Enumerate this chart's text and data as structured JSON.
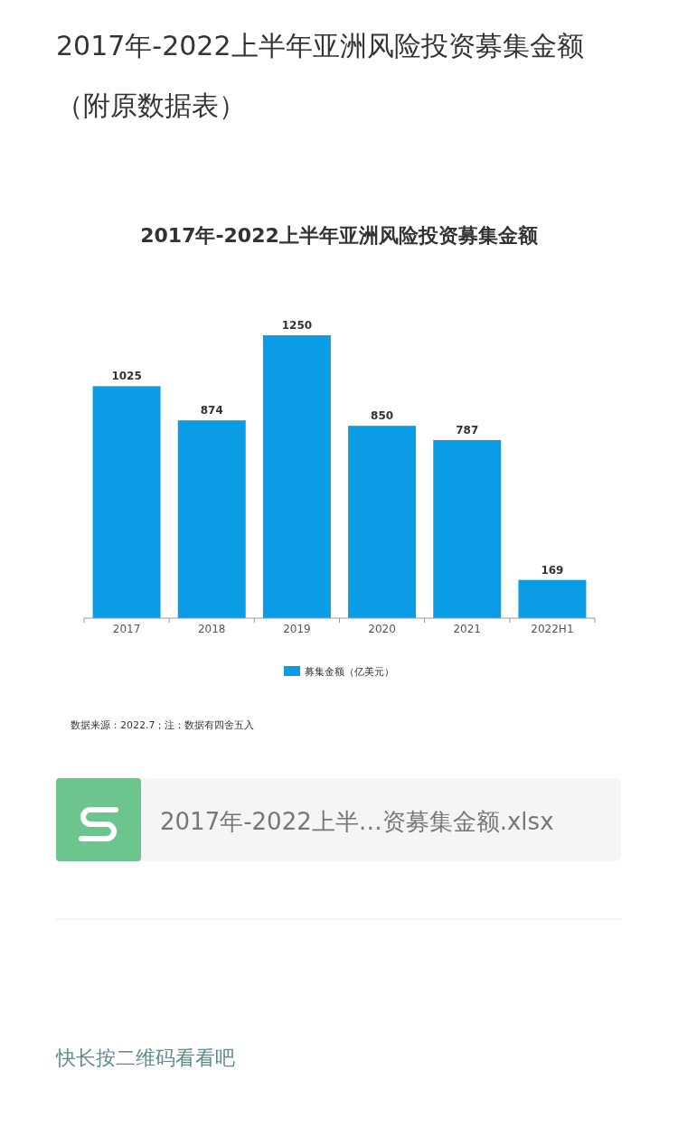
{
  "chart_data": {
    "type": "bar",
    "title": "2017年-2022上半年亚洲风险投资募集金额",
    "categories": [
      "2017",
      "2018",
      "2019",
      "2020",
      "2021",
      "2022H1"
    ],
    "series": [
      {
        "name": "募集金额（亿美元）",
        "color": "#0a9de6",
        "values": [
          1025,
          874,
          1250,
          850,
          787,
          169
        ]
      }
    ],
    "data_labels": true,
    "legend": "bottom",
    "annotations": [
      "2017年-2022上半年亚洲风险投资募集金额（附原数据表）",
      "数据来源：2022.7；注：数据有四舍五入",
      "2017年-2022上半…资募集金额.xlsx",
      "快长按二维码看看吧"
    ]
  }
}
